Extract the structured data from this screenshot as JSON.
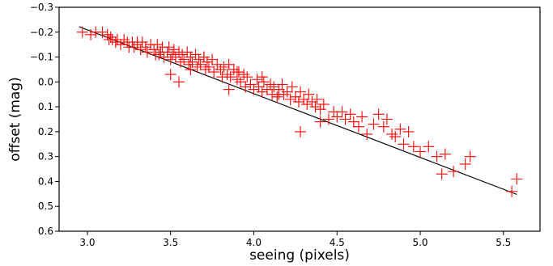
{
  "chart_data": {
    "type": "scatter",
    "xlabel": "seeing (pixels)",
    "ylabel": "offset (mag)",
    "xlim": [
      2.83,
      5.72
    ],
    "ylim": [
      0.6,
      -0.3
    ],
    "y_inverted": true,
    "grid": false,
    "xticks": [
      3.0,
      3.5,
      4.0,
      4.5,
      5.0,
      5.5
    ],
    "xtick_labels": [
      "3.0",
      "3.5",
      "4.0",
      "4.5",
      "5.0",
      "5.5"
    ],
    "yticks": [
      -0.3,
      -0.2,
      -0.1,
      0.0,
      0.1,
      0.2,
      0.3,
      0.4,
      0.5,
      0.6
    ],
    "ytick_labels": [
      "−0.3",
      "−0.2",
      "−0.1",
      "0.0",
      "0.1",
      "0.2",
      "0.3",
      "0.4",
      "0.5",
      "0.6"
    ],
    "colors": {
      "points": "#ff0000",
      "fit_line": "#000000",
      "frame": "#000000"
    },
    "fit_line": {
      "x": [
        2.95,
        5.58
      ],
      "y": [
        -0.222,
        0.452
      ]
    },
    "series": [
      {
        "marker": "plus",
        "x": [
          2.97,
          3.02,
          3.05,
          3.09,
          3.12,
          3.13,
          3.14,
          3.15,
          3.17,
          3.18,
          3.2,
          3.22,
          3.24,
          3.25,
          3.27,
          3.28,
          3.3,
          3.32,
          3.33,
          3.35,
          3.36,
          3.38,
          3.4,
          3.41,
          3.42,
          3.44,
          3.45,
          3.46,
          3.48,
          3.49,
          3.5,
          3.51,
          3.52,
          3.53,
          3.55,
          3.56,
          3.57,
          3.58,
          3.6,
          3.61,
          3.62,
          3.63,
          3.65,
          3.66,
          3.67,
          3.68,
          3.7,
          3.71,
          3.72,
          3.73,
          3.75,
          3.76,
          3.78,
          3.8,
          3.81,
          3.82,
          3.84,
          3.85,
          3.86,
          3.88,
          3.9,
          3.91,
          3.92,
          3.94,
          3.95,
          3.96,
          3.98,
          4.0,
          4.02,
          4.03,
          4.05,
          4.06,
          4.08,
          4.1,
          4.11,
          4.12,
          4.14,
          4.15,
          4.17,
          4.18,
          4.2,
          4.22,
          4.23,
          4.25,
          4.27,
          4.28,
          4.3,
          4.32,
          4.33,
          4.35,
          4.37,
          4.38,
          4.4,
          4.42,
          4.45,
          4.48,
          4.5,
          4.53,
          4.55,
          4.58,
          4.6,
          4.63,
          4.65,
          4.68,
          4.72,
          4.75,
          4.78,
          4.8,
          4.83,
          4.85,
          4.88,
          4.9,
          4.93,
          4.96,
          5.0,
          5.05,
          5.1,
          5.13,
          5.15,
          5.2,
          5.27,
          5.3,
          5.55,
          5.58,
          3.3,
          3.5,
          3.55,
          3.7,
          3.9,
          4.28,
          4.15,
          3.85,
          3.62,
          3.43,
          4.05,
          4.4
        ],
        "y": [
          -0.2,
          -0.19,
          -0.2,
          -0.2,
          -0.19,
          -0.17,
          -0.18,
          -0.17,
          -0.16,
          -0.17,
          -0.15,
          -0.17,
          -0.16,
          -0.14,
          -0.16,
          -0.14,
          -0.15,
          -0.13,
          -0.16,
          -0.14,
          -0.12,
          -0.15,
          -0.13,
          -0.11,
          -0.15,
          -0.12,
          -0.14,
          -0.1,
          -0.12,
          -0.14,
          -0.09,
          -0.11,
          -0.13,
          -0.1,
          -0.12,
          -0.08,
          -0.11,
          -0.09,
          -0.12,
          -0.07,
          -0.1,
          -0.08,
          -0.11,
          -0.06,
          -0.09,
          -0.07,
          -0.1,
          -0.05,
          -0.08,
          -0.06,
          -0.09,
          -0.04,
          -0.07,
          -0.05,
          -0.02,
          -0.06,
          -0.03,
          -0.07,
          -0.02,
          -0.05,
          -0.01,
          -0.04,
          0.0,
          -0.03,
          0.02,
          -0.02,
          0.01,
          0.03,
          -0.01,
          0.02,
          0.04,
          0.0,
          0.03,
          0.01,
          0.05,
          0.02,
          0.06,
          0.03,
          0.01,
          0.05,
          0.04,
          0.07,
          0.02,
          0.06,
          0.08,
          0.04,
          0.07,
          0.09,
          0.05,
          0.08,
          0.1,
          0.07,
          0.11,
          0.09,
          0.15,
          0.12,
          0.14,
          0.12,
          0.15,
          0.13,
          0.16,
          0.18,
          0.14,
          0.21,
          0.17,
          0.13,
          0.18,
          0.15,
          0.21,
          0.22,
          0.19,
          0.25,
          0.2,
          0.26,
          0.28,
          0.26,
          0.3,
          0.37,
          0.29,
          0.36,
          0.33,
          0.3,
          0.44,
          0.39,
          -0.16,
          -0.03,
          0.0,
          -0.1,
          -0.04,
          0.2,
          0.05,
          0.03,
          -0.05,
          -0.11,
          -0.02,
          0.16
        ]
      }
    ]
  }
}
